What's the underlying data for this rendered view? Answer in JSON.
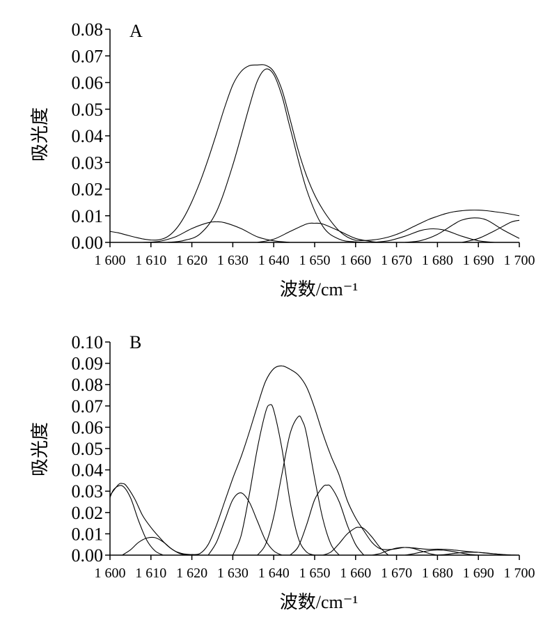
{
  "chart_data": [
    {
      "type": "line",
      "panel_label": "A",
      "xlabel": "波数/cm⁻¹",
      "ylabel": "吸光度",
      "xlim": [
        1600,
        1700
      ],
      "ylim": [
        0,
        0.08
      ],
      "x_ticks": [
        1600,
        1610,
        1620,
        1630,
        1640,
        1650,
        1660,
        1670,
        1680,
        1690,
        1700
      ],
      "x_tick_labels": [
        "1 600",
        "1 610",
        "1 620",
        "1 630",
        "1 640",
        "1 650",
        "1 660",
        "1 670",
        "1 680",
        "1 690",
        "1 700"
      ],
      "y_ticks": [
        0,
        0.01,
        0.02,
        0.03,
        0.04,
        0.05,
        0.06,
        0.07,
        0.08
      ],
      "y_tick_labels": [
        "0.00",
        "0.01",
        "0.02",
        "0.03",
        "0.04",
        "0.05",
        "0.06",
        "0.07",
        "0.08"
      ],
      "grid": false,
      "series": [
        {
          "x": [
            1600,
            1602,
            1604,
            1606,
            1608,
            1610,
            1612,
            1614,
            1616,
            1618,
            1620,
            1622,
            1624,
            1626,
            1628,
            1630,
            1632,
            1634,
            1636,
            1638,
            1640,
            1642,
            1644,
            1646,
            1648,
            1650,
            1652,
            1654,
            1656,
            1658,
            1660,
            1662,
            1664,
            1666,
            1668,
            1670,
            1672,
            1674,
            1676,
            1678,
            1680,
            1682,
            1684,
            1686,
            1688,
            1690,
            1692,
            1694,
            1696,
            1698,
            1700
          ],
          "values": [
            0.0041,
            0.0036,
            0.0028,
            0.002,
            0.0013,
            0.0009,
            0.001,
            0.0021,
            0.0048,
            0.0092,
            0.0153,
            0.0227,
            0.0313,
            0.0408,
            0.0506,
            0.0591,
            0.0641,
            0.0663,
            0.0666,
            0.0665,
            0.0641,
            0.0573,
            0.0462,
            0.0345,
            0.0251,
            0.0178,
            0.0123,
            0.0079,
            0.0043,
            0.002,
            0.0008,
            0.0007,
            0.0009,
            0.0013,
            0.002,
            0.003,
            0.0043,
            0.0058,
            0.0073,
            0.0087,
            0.0098,
            0.0108,
            0.0115,
            0.0119,
            0.0121,
            0.0121,
            0.0119,
            0.0115,
            0.0111,
            0.0106,
            0.01
          ]
        },
        {
          "x": [
            1608,
            1612,
            1616,
            1620,
            1624,
            1626,
            1628,
            1632,
            1636,
            1640,
            1644
          ],
          "values": [
            0.0,
            0.0004,
            0.0021,
            0.0052,
            0.0074,
            0.0077,
            0.0074,
            0.0052,
            0.0021,
            0.0006,
            0.0
          ]
        },
        {
          "x": [
            1614,
            1618,
            1622,
            1626,
            1630,
            1634,
            1636,
            1638,
            1640,
            1642,
            1644,
            1648,
            1652,
            1656,
            1660,
            1664
          ],
          "values": [
            0.0,
            0.0007,
            0.0032,
            0.0115,
            0.029,
            0.0508,
            0.0606,
            0.065,
            0.063,
            0.055,
            0.043,
            0.02,
            0.006,
            0.0012,
            0.0002,
            0.0
          ]
        },
        {
          "x": [
            1636,
            1640,
            1644,
            1648,
            1650,
            1652,
            1656,
            1660,
            1664,
            1666
          ],
          "values": [
            0.0,
            0.0012,
            0.0041,
            0.0069,
            0.0072,
            0.0069,
            0.0043,
            0.0015,
            0.0003,
            0.0
          ]
        },
        {
          "x": [
            1664,
            1668,
            1672,
            1676,
            1679,
            1682,
            1686,
            1690,
            1694
          ],
          "values": [
            0.0,
            0.0006,
            0.0023,
            0.0045,
            0.0051,
            0.0045,
            0.0023,
            0.0006,
            0.0
          ]
        },
        {
          "x": [
            1672,
            1676,
            1680,
            1684,
            1686,
            1689,
            1692,
            1696,
            1700
          ],
          "values": [
            0.0,
            0.0007,
            0.003,
            0.0068,
            0.0084,
            0.0092,
            0.0084,
            0.0047,
            0.0015
          ]
        },
        {
          "x": [
            1686,
            1690,
            1694,
            1698,
            1700
          ],
          "values": [
            0.0,
            0.0015,
            0.0044,
            0.0076,
            0.0083
          ]
        }
      ]
    },
    {
      "type": "line",
      "panel_label": "B",
      "xlabel": "波数/cm⁻¹",
      "ylabel": "吸光度",
      "xlim": [
        1600,
        1700
      ],
      "ylim": [
        0,
        0.1
      ],
      "x_ticks": [
        1600,
        1610,
        1620,
        1630,
        1640,
        1650,
        1660,
        1670,
        1680,
        1690,
        1700
      ],
      "x_tick_labels": [
        "1 600",
        "1 610",
        "1 620",
        "1 630",
        "1 640",
        "1 650",
        "1 660",
        "1 670",
        "1 680",
        "1 690",
        "1 700"
      ],
      "y_ticks": [
        0,
        0.01,
        0.02,
        0.03,
        0.04,
        0.05,
        0.06,
        0.07,
        0.08,
        0.09,
        0.1
      ],
      "y_tick_labels": [
        "0.00",
        "0.01",
        "0.02",
        "0.03",
        "0.04",
        "0.05",
        "0.06",
        "0.07",
        "0.08",
        "0.09",
        "0.10"
      ],
      "grid": false,
      "series": [
        {
          "x": [
            1600,
            1602,
            1603,
            1604,
            1606,
            1608,
            1610,
            1612,
            1614,
            1616,
            1618,
            1620,
            1622,
            1624,
            1626,
            1628,
            1630,
            1632,
            1634,
            1636,
            1638,
            1640,
            1642,
            1644,
            1646,
            1648,
            1650,
            1652,
            1654,
            1656,
            1658,
            1660,
            1662,
            1664,
            1666,
            1668,
            1670,
            1672,
            1674,
            1676,
            1678,
            1680,
            1682,
            1684,
            1686,
            1688,
            1690,
            1692,
            1694,
            1696,
            1698,
            1700
          ],
          "values": [
            0.028,
            0.033,
            0.0336,
            0.0325,
            0.0265,
            0.0185,
            0.013,
            0.0085,
            0.0045,
            0.0018,
            0.0006,
            0.0003,
            0.0008,
            0.005,
            0.014,
            0.025,
            0.036,
            0.046,
            0.0575,
            0.07,
            0.0815,
            0.0875,
            0.0888,
            0.0872,
            0.0845,
            0.079,
            0.069,
            0.057,
            0.0465,
            0.0375,
            0.0255,
            0.0175,
            0.0115,
            0.006,
            0.003,
            0.0026,
            0.003,
            0.0036,
            0.0034,
            0.003,
            0.0027,
            0.0028,
            0.0027,
            0.0024,
            0.002,
            0.0016,
            0.0013,
            0.0009,
            0.0006,
            0.0003,
            0.0001,
            0.0
          ]
        },
        {
          "x": [
            1600,
            1601,
            1603,
            1605,
            1607,
            1609,
            1611,
            1613
          ],
          "values": [
            0.027,
            0.031,
            0.0325,
            0.027,
            0.016,
            0.007,
            0.002,
            0.0
          ]
        },
        {
          "x": [
            1603,
            1605,
            1607,
            1609,
            1611,
            1613,
            1615,
            1617,
            1619
          ],
          "values": [
            0.0,
            0.0025,
            0.006,
            0.008,
            0.0082,
            0.0062,
            0.003,
            0.0008,
            0.0
          ]
        },
        {
          "x": [
            1624,
            1626,
            1628,
            1630,
            1632,
            1634,
            1636,
            1638,
            1640,
            1642
          ],
          "values": [
            0.0,
            0.006,
            0.016,
            0.026,
            0.0292,
            0.025,
            0.016,
            0.007,
            0.002,
            0.0
          ]
        },
        {
          "x": [
            1630,
            1632,
            1634,
            1636,
            1638,
            1639,
            1640,
            1642,
            1644,
            1646,
            1648,
            1650
          ],
          "values": [
            0.0,
            0.009,
            0.028,
            0.05,
            0.067,
            0.0705,
            0.068,
            0.05,
            0.025,
            0.008,
            0.0015,
            0.0
          ]
        },
        {
          "x": [
            1636,
            1638,
            1640,
            1642,
            1644,
            1646,
            1647,
            1648,
            1650,
            1652,
            1654,
            1656
          ],
          "values": [
            0.0,
            0.005,
            0.018,
            0.038,
            0.057,
            0.065,
            0.063,
            0.057,
            0.036,
            0.017,
            0.005,
            0.0
          ]
        },
        {
          "x": [
            1644,
            1646,
            1648,
            1650,
            1652,
            1653,
            1654,
            1656,
            1658,
            1660,
            1662
          ],
          "values": [
            0.0,
            0.004,
            0.014,
            0.026,
            0.032,
            0.0328,
            0.032,
            0.025,
            0.014,
            0.005,
            0.0
          ]
        },
        {
          "x": [
            1652,
            1654,
            1656,
            1658,
            1660,
            1661,
            1662,
            1664,
            1666,
            1668
          ],
          "values": [
            0.0,
            0.0015,
            0.0055,
            0.01,
            0.0128,
            0.013,
            0.0125,
            0.0085,
            0.0035,
            0.0
          ]
        },
        {
          "x": [
            1664,
            1666,
            1668,
            1670,
            1672,
            1674,
            1676,
            1678,
            1680
          ],
          "values": [
            0.0,
            0.0008,
            0.0022,
            0.0033,
            0.0036,
            0.0032,
            0.002,
            0.0008,
            0.0
          ]
        },
        {
          "x": [
            1672,
            1674,
            1676,
            1678,
            1680,
            1682,
            1684,
            1686,
            1688,
            1690
          ],
          "values": [
            0.0,
            0.0006,
            0.0014,
            0.0021,
            0.0024,
            0.0022,
            0.0016,
            0.0009,
            0.0003,
            0.0
          ]
        },
        {
          "x": [
            1680,
            1682,
            1684,
            1686,
            1688,
            1690,
            1692,
            1694,
            1696,
            1698
          ],
          "values": [
            0.0,
            0.0003,
            0.0008,
            0.0012,
            0.0014,
            0.0013,
            0.001,
            0.0006,
            0.0002,
            0.0
          ]
        }
      ]
    }
  ]
}
